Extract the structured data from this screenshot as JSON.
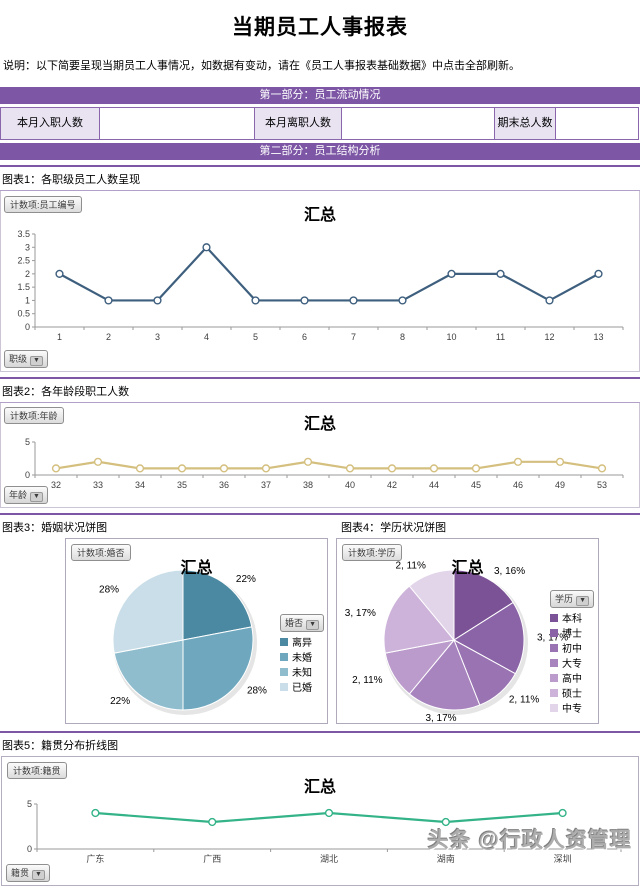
{
  "page": {
    "title": "当期员工人事报表",
    "note": "说明：以下简要呈现当期员工人事情况，如数据有变动，请在《员工人事报表基础数据》中点击全部刷新。",
    "watermark": "头条 @行政人资管理"
  },
  "section_bars": {
    "part1": "第一部分：员工流动情况",
    "part2": "第二部分：员工结构分析"
  },
  "flow_table": {
    "items": [
      {
        "label": "本月入职人数",
        "value": ""
      },
      {
        "label": "本月离职人数",
        "value": ""
      },
      {
        "label": "期末总人数",
        "value": ""
      }
    ]
  },
  "colors": {
    "accent_purple": "#7d57a5",
    "label_cell_bg": "#e8e2f1",
    "chart1_line": "#3e5f7e",
    "chart2_line": "#d4bf7e",
    "chart5_line": "#33b387"
  },
  "chart_data": [
    {
      "type": "line",
      "header": "图表1：各职级员工人数呈现",
      "field_button": "计数项:员工编号",
      "axis_field": "职级",
      "title": "汇总",
      "categories": [
        "1",
        "2",
        "3",
        "4",
        "5",
        "6",
        "7",
        "8",
        "10",
        "11",
        "12",
        "13"
      ],
      "values": [
        2,
        1,
        1,
        3,
        1,
        1,
        1,
        1,
        2,
        2,
        1,
        2
      ],
      "ylim": [
        0,
        3.5
      ],
      "yticks": [
        0,
        0.5,
        1,
        1.5,
        2,
        2.5,
        3,
        3.5
      ],
      "line_color": "#3e5f7e",
      "grid": false,
      "legend": "none"
    },
    {
      "type": "line",
      "header": "图表2：各年龄段职工人数",
      "field_button": "计数项:年龄",
      "axis_field": "年龄",
      "title": "汇总",
      "categories": [
        "32",
        "33",
        "34",
        "35",
        "36",
        "37",
        "38",
        "40",
        "42",
        "44",
        "45",
        "46",
        "49",
        "53"
      ],
      "values": [
        1,
        2,
        1,
        1,
        1,
        1,
        2,
        1,
        1,
        1,
        1,
        2,
        2,
        1
      ],
      "ylim": [
        0,
        5
      ],
      "yticks": [
        0,
        5
      ],
      "line_color": "#d4bf7e",
      "grid": false,
      "legend": "none"
    },
    {
      "type": "pie",
      "header": "图表3：婚姻状况饼图",
      "field_button": "计数项:婚否",
      "legend_field": "婚否",
      "title": "汇总",
      "slices": [
        {
          "label": "离异",
          "value": 22,
          "data_label": "22%",
          "color": "#4a89a1"
        },
        {
          "label": "未婚",
          "value": 28,
          "data_label": "28%",
          "color": "#6fa8be"
        },
        {
          "label": "未知",
          "value": 22,
          "data_label": "22%",
          "color": "#8fbdce"
        },
        {
          "label": "已婚",
          "value": 28,
          "data_label": "28%",
          "color": "#c9dee8"
        }
      ],
      "legend_position": "right"
    },
    {
      "type": "pie",
      "header": "图表4：学历状况饼图",
      "field_button": "计数项:学历",
      "legend_field": "学历",
      "title": "汇总",
      "slices": [
        {
          "label": "本科",
          "value": 16,
          "data_label": "3, 16%",
          "color": "#7b5295"
        },
        {
          "label": "博士",
          "value": 17,
          "data_label": "3, 17%",
          "color": "#8a64a6"
        },
        {
          "label": "初中",
          "value": 11,
          "data_label": "2, 11%",
          "color": "#9973b2"
        },
        {
          "label": "大专",
          "value": 17,
          "data_label": "3, 17%",
          "color": "#a884bf"
        },
        {
          "label": "高中",
          "value": 11,
          "data_label": "2, 11%",
          "color": "#ba9bcb"
        },
        {
          "label": "硕士",
          "value": 17,
          "data_label": "3, 17%",
          "color": "#cdb3d9"
        },
        {
          "label": "中专",
          "value": 11,
          "data_label": "2, 11%",
          "color": "#e2d4e9"
        }
      ],
      "legend_position": "right"
    },
    {
      "type": "line",
      "header": "图表5：籍贯分布折线图",
      "field_button": "计数项:籍贯",
      "axis_field": "籍贯",
      "title": "汇总",
      "categories": [
        "广东",
        "广西",
        "湖北",
        "湖南",
        "深圳"
      ],
      "values": [
        4,
        3,
        4,
        3,
        4
      ],
      "ylim": [
        0,
        5
      ],
      "yticks": [
        0,
        5
      ],
      "line_color": "#33b387",
      "grid": false,
      "legend": "none"
    }
  ]
}
